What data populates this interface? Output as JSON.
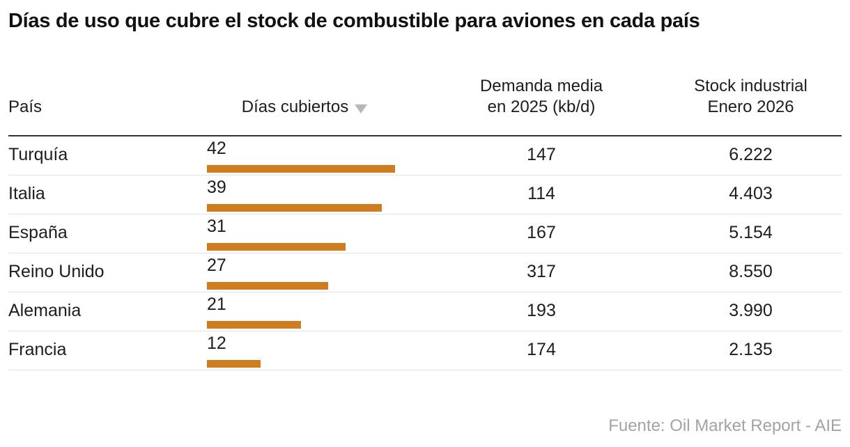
{
  "title": "Días de uso que cubre el stock de combustible para aviones en cada país",
  "source": "Fuente: Oil Market Report - AIE",
  "colors": {
    "bar": "#CE7D1F",
    "rule_dark": "#333333",
    "rule_light": "#e3e3e3",
    "sort_icon": "#b8b8b8",
    "source_text": "#a3a3a3"
  },
  "table": {
    "columns": {
      "country": "País",
      "days": "Días cubiertos",
      "sort_icon": "▼",
      "demand_line1": "Demanda media",
      "demand_line2": "en 2025 (kb/d)",
      "stock_line1": "Stock industrial",
      "stock_line2": "Enero 2026"
    },
    "rows": [
      {
        "country": "Turquía",
        "days": 42,
        "demand": "147",
        "stock": "6.222"
      },
      {
        "country": "Italia",
        "days": 39,
        "demand": "114",
        "stock": "4.403"
      },
      {
        "country": "España",
        "days": 31,
        "demand": "167",
        "stock": "5.154"
      },
      {
        "country": "Reino Unido",
        "days": 27,
        "demand": "317",
        "stock": "8.550"
      },
      {
        "country": "Alemania",
        "days": 21,
        "demand": "193",
        "stock": "3.990"
      },
      {
        "country": "Francia",
        "days": 12,
        "demand": "174",
        "stock": "2.135"
      }
    ]
  },
  "chart_data": {
    "type": "bar",
    "orientation": "horizontal",
    "title": "Días de uso que cubre el stock de combustible para aviones en cada país",
    "categories": [
      "Turquía",
      "Italia",
      "España",
      "Reino Unido",
      "Alemania",
      "Francia"
    ],
    "series": [
      {
        "name": "Días cubiertos",
        "values": [
          42,
          39,
          31,
          27,
          21,
          12
        ]
      },
      {
        "name": "Demanda media en 2025 (kb/d)",
        "values": [
          147,
          114,
          167,
          317,
          193,
          174
        ]
      },
      {
        "name": "Stock industrial Enero 2026",
        "values": [
          6222,
          4403,
          5154,
          8550,
          3990,
          2135
        ]
      }
    ],
    "bar_series": "Días cubiertos",
    "xlim": [
      0,
      42
    ],
    "sort": {
      "column": "Días cubiertos",
      "direction": "desc"
    },
    "legend": "none",
    "grid": false,
    "source": "Fuente: Oil Market Report - AIE"
  }
}
